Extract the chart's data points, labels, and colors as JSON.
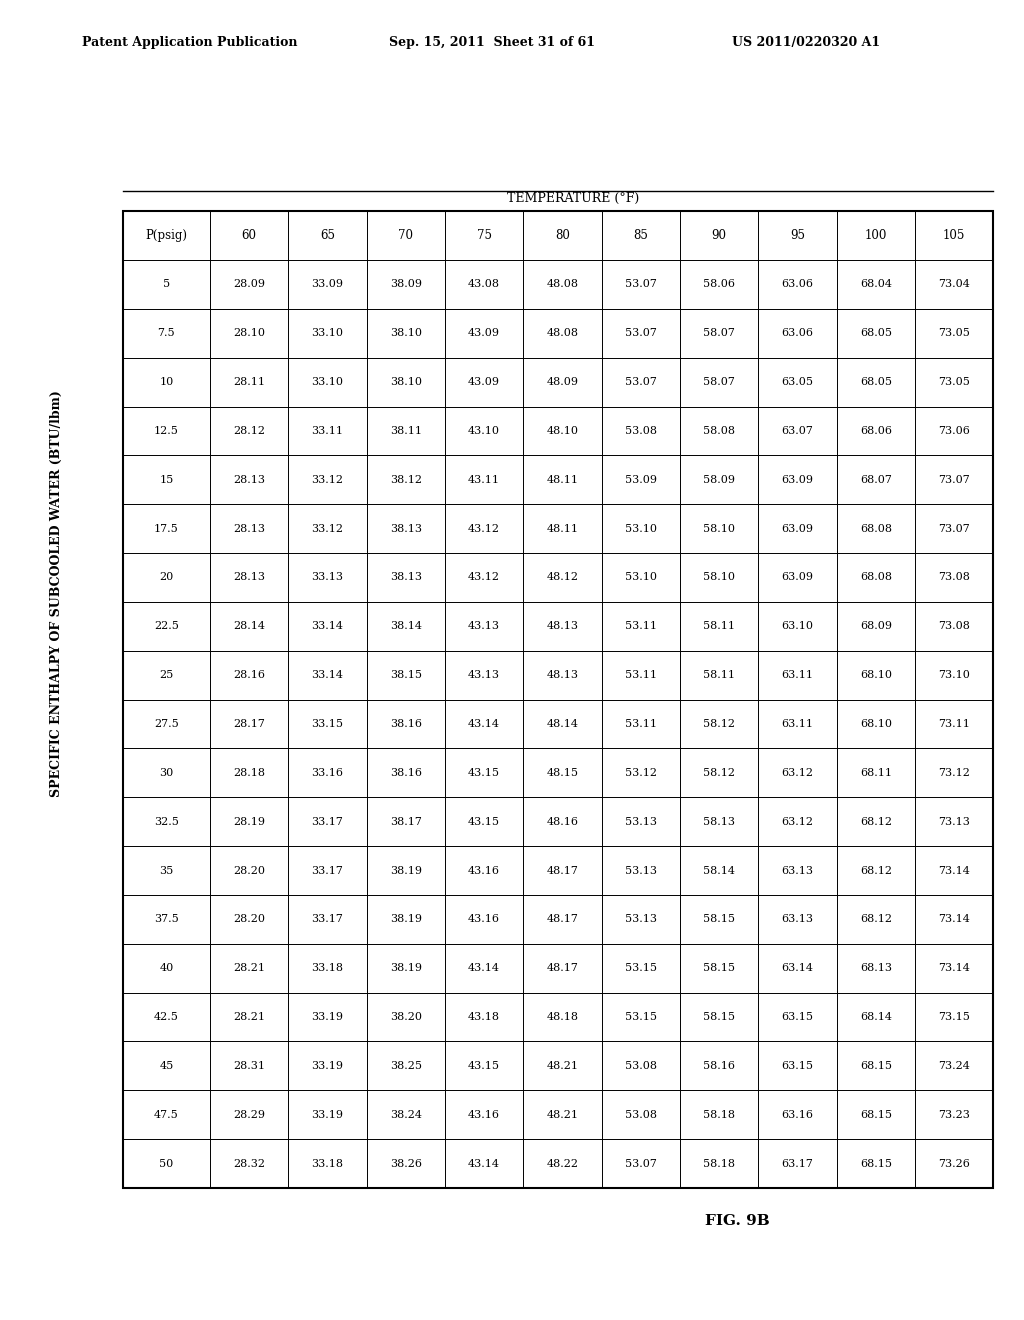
{
  "header_left": "Patent Application Publication",
  "header_mid": "Sep. 15, 2011  Sheet 31 of 61",
  "header_right": "US 2011/0220320 A1",
  "title": "SPECIFIC ENTHALPY OF SUBCOOLED WATER (BTU/lbm)",
  "subtitle": "TEMPERATURE (°F)",
  "fig_label": "FIG. 9B",
  "col_headers": [
    "P(psig)",
    "60",
    "65",
    "70",
    "75",
    "80",
    "85",
    "90",
    "95",
    "100",
    "105"
  ],
  "rows": [
    [
      "5",
      "28.09",
      "33.09",
      "38.09",
      "43.08",
      "48.08",
      "53.07",
      "58.06",
      "63.06",
      "68.04",
      "73.04"
    ],
    [
      "7.5",
      "28.10",
      "33.10",
      "38.10",
      "43.09",
      "48.08",
      "53.07",
      "58.07",
      "63.06",
      "68.05",
      "73.05"
    ],
    [
      "10",
      "28.11",
      "33.10",
      "38.10",
      "43.09",
      "48.09",
      "53.07",
      "58.07",
      "63.05",
      "68.05",
      "73.05"
    ],
    [
      "12.5",
      "28.12",
      "33.11",
      "38.11",
      "43.10",
      "48.10",
      "53.08",
      "58.08",
      "63.07",
      "68.06",
      "73.06"
    ],
    [
      "15",
      "28.13",
      "33.12",
      "38.12",
      "43.11",
      "48.11",
      "53.09",
      "58.09",
      "63.09",
      "68.07",
      "73.07"
    ],
    [
      "17.5",
      "28.13",
      "33.12",
      "38.13",
      "43.12",
      "48.11",
      "53.10",
      "58.10",
      "63.09",
      "68.08",
      "73.07"
    ],
    [
      "20",
      "28.13",
      "33.13",
      "38.13",
      "43.12",
      "48.12",
      "53.10",
      "58.10",
      "63.09",
      "68.08",
      "73.08"
    ],
    [
      "22.5",
      "28.14",
      "33.14",
      "38.14",
      "43.13",
      "48.13",
      "53.11",
      "58.11",
      "63.10",
      "68.09",
      "73.08"
    ],
    [
      "25",
      "28.16",
      "33.14",
      "38.15",
      "43.13",
      "48.13",
      "53.11",
      "58.11",
      "63.11",
      "68.10",
      "73.10"
    ],
    [
      "27.5",
      "28.17",
      "33.15",
      "38.16",
      "43.14",
      "48.14",
      "53.11",
      "58.12",
      "63.11",
      "68.10",
      "73.11"
    ],
    [
      "30",
      "28.18",
      "33.16",
      "38.16",
      "43.15",
      "48.15",
      "53.12",
      "58.12",
      "63.12",
      "68.11",
      "73.12"
    ],
    [
      "32.5",
      "28.19",
      "33.17",
      "38.17",
      "43.15",
      "48.16",
      "53.13",
      "58.13",
      "63.12",
      "68.12",
      "73.13"
    ],
    [
      "35",
      "28.20",
      "33.17",
      "38.19",
      "43.16",
      "48.17",
      "53.13",
      "58.14",
      "63.13",
      "68.12",
      "73.14"
    ],
    [
      "37.5",
      "28.20",
      "33.17",
      "38.19",
      "43.16",
      "48.17",
      "53.13",
      "58.15",
      "63.13",
      "68.12",
      "73.14"
    ],
    [
      "40",
      "28.21",
      "33.18",
      "38.19",
      "43.14",
      "48.17",
      "53.15",
      "58.15",
      "63.14",
      "68.13",
      "73.14"
    ],
    [
      "42.5",
      "28.21",
      "33.19",
      "38.20",
      "43.18",
      "48.18",
      "53.15",
      "58.15",
      "63.15",
      "68.14",
      "73.15"
    ],
    [
      "45",
      "28.31",
      "33.19",
      "38.25",
      "43.15",
      "48.21",
      "53.08",
      "58.16",
      "63.15",
      "68.15",
      "73.24"
    ],
    [
      "47.5",
      "28.29",
      "33.19",
      "38.24",
      "43.16",
      "48.21",
      "53.08",
      "58.18",
      "63.16",
      "68.15",
      "73.23"
    ],
    [
      "50",
      "28.32",
      "33.18",
      "38.26",
      "43.14",
      "48.22",
      "53.07",
      "58.18",
      "63.17",
      "68.15",
      "73.26"
    ]
  ]
}
